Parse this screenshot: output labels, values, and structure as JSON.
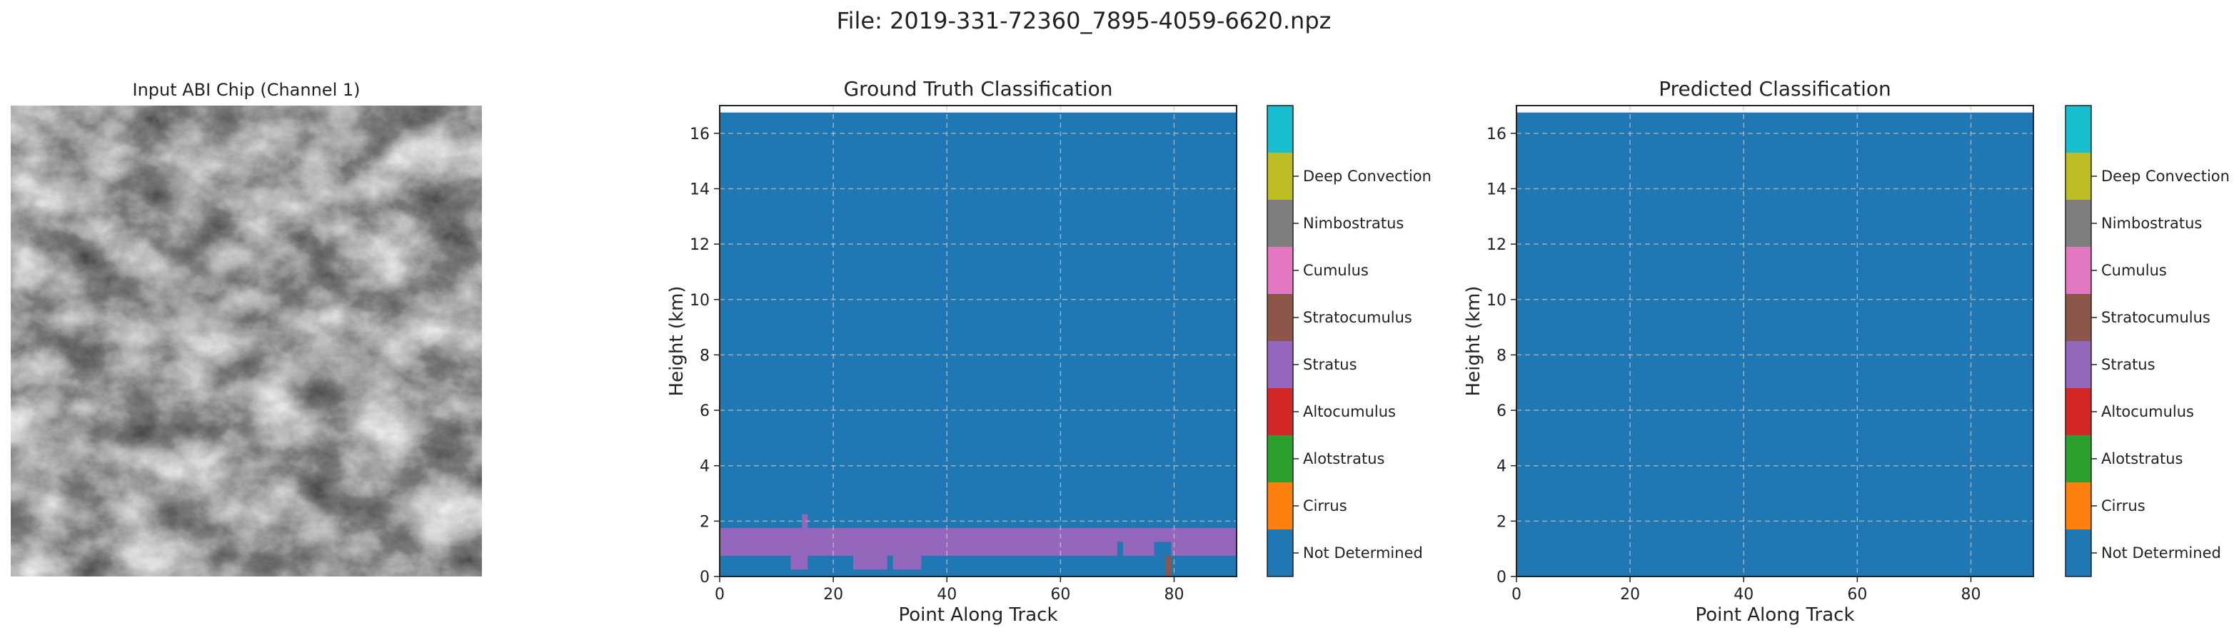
{
  "figure": {
    "suptitle": "File: 2019-331-72360_7895-4059-6620.npz"
  },
  "chart_data": [
    {
      "type": "image",
      "title": "Input ABI Chip (Channel 1)",
      "colormap": "grayscale"
    },
    {
      "type": "heatmap",
      "title": "Ground Truth Classification",
      "xlabel": "Point Along Track",
      "ylabel": "Height (km)",
      "xlim": [
        0,
        91
      ],
      "ylim": [
        0,
        17
      ],
      "x_ticks": [
        0,
        20,
        40,
        60,
        80
      ],
      "y_ticks": [
        0,
        2,
        4,
        6,
        8,
        10,
        12,
        14,
        16
      ],
      "grid": true,
      "background_class": 0,
      "regions": [
        {
          "class": 4,
          "x0": 0,
          "x1": 91,
          "y0": 0.75,
          "y1": 1.75
        },
        {
          "class": 4,
          "x0": 12.5,
          "x1": 15.5,
          "y0": 0.25,
          "y1": 0.75
        },
        {
          "class": 4,
          "x0": 14.5,
          "x1": 15.5,
          "y0": 1.75,
          "y1": 2.25
        },
        {
          "class": 4,
          "x0": 23.5,
          "x1": 29.5,
          "y0": 0.25,
          "y1": 0.75
        },
        {
          "class": 4,
          "x0": 30.5,
          "x1": 35.5,
          "y0": 0.25,
          "y1": 0.75
        },
        {
          "class": 0,
          "x0": 70,
          "x1": 71,
          "y0": 0.75,
          "y1": 1.25
        },
        {
          "class": 0,
          "x0": 76.5,
          "x1": 79.5,
          "y0": 0.75,
          "y1": 1.25
        },
        {
          "class": 5,
          "x0": 78.5,
          "x1": 79.5,
          "y0": 0,
          "y1": 0.75
        }
      ]
    },
    {
      "type": "heatmap",
      "title": "Predicted Classification",
      "xlabel": "Point Along Track",
      "ylabel": "Height (km)",
      "xlim": [
        0,
        91
      ],
      "ylim": [
        0,
        17
      ],
      "x_ticks": [
        0,
        20,
        40,
        60,
        80
      ],
      "y_ticks": [
        0,
        2,
        4,
        6,
        8,
        10,
        12,
        14,
        16
      ],
      "grid": true,
      "background_class": 0,
      "regions": []
    }
  ],
  "classes": [
    {
      "label": "Not Determined",
      "color": "#1f77b4"
    },
    {
      "label": "Cirrus",
      "color": "#ff7f0e"
    },
    {
      "label": "Alotstratus",
      "color": "#2ca02c"
    },
    {
      "label": "Altocumulus",
      "color": "#d62728"
    },
    {
      "label": "Stratus",
      "color": "#9467bd"
    },
    {
      "label": "Stratocumulus",
      "color": "#8c564b"
    },
    {
      "label": "Cumulus",
      "color": "#e377c2"
    },
    {
      "label": "Nimbostratus",
      "color": "#7f7f7f"
    },
    {
      "label": "Deep Convection",
      "color": "#bcbd22"
    },
    {
      "label": "",
      "color": "#17becf"
    }
  ]
}
